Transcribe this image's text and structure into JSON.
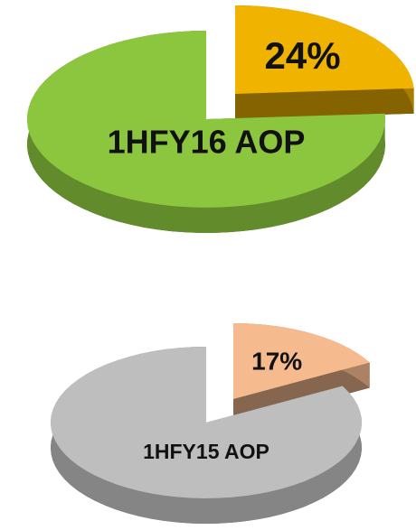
{
  "chart_data": [
    {
      "type": "pie",
      "title": "1HFY16 AOP",
      "categories": [
        null,
        null
      ],
      "values": [
        24,
        76
      ],
      "value_labels": [
        "24%",
        null
      ],
      "colors": [
        "#f0b400",
        "#8cc63e"
      ]
    },
    {
      "type": "pie",
      "title": "1HFY15 AOP",
      "categories": [
        null,
        null
      ],
      "values": [
        17,
        83
      ],
      "value_labels": [
        "17%",
        null
      ],
      "colors": [
        "#f6ba8f",
        "#bebebe"
      ]
    }
  ]
}
